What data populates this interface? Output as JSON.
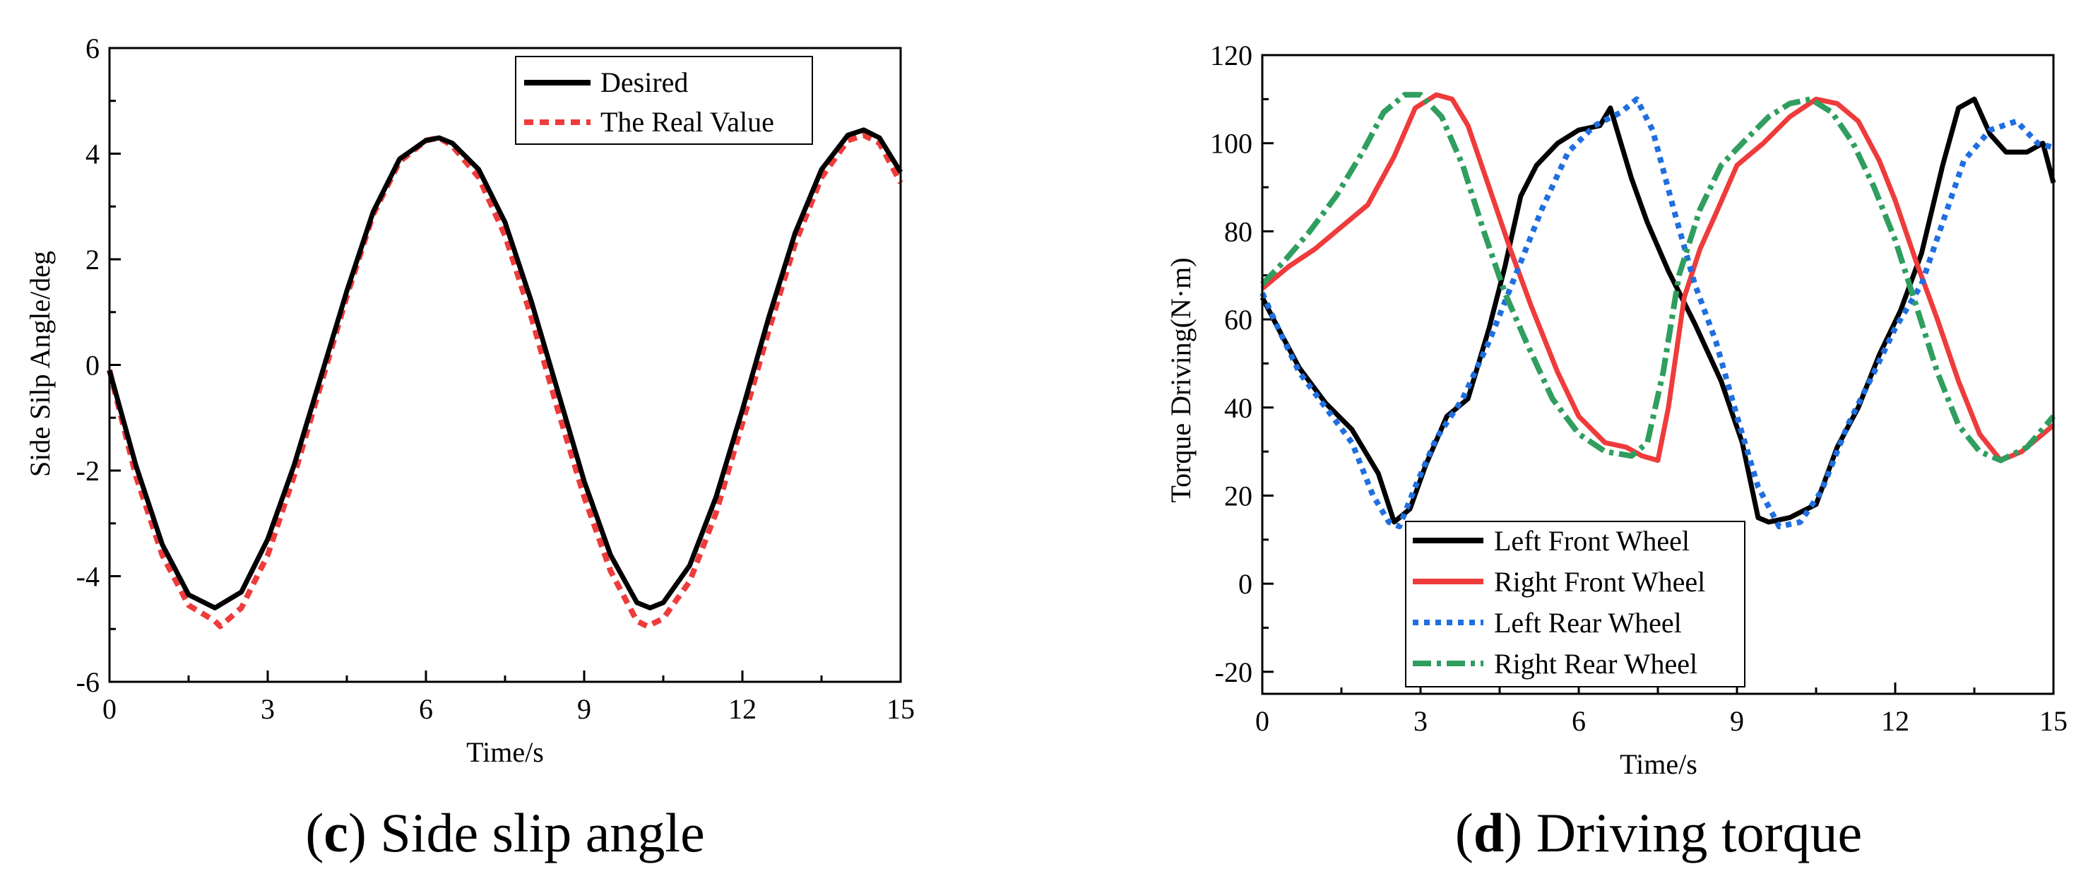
{
  "chart_data": [
    {
      "id": "c",
      "type": "line",
      "caption": {
        "letter": "c",
        "open": "(",
        "close": ")",
        "text": " Side slip angle"
      },
      "xlabel": "Time/s",
      "ylabel": "Side Silp Angle/deg",
      "xlim": [
        0,
        15
      ],
      "ylim": [
        -6,
        6
      ],
      "xticks": [
        0,
        3,
        6,
        9,
        12,
        15
      ],
      "yticks": [
        -6,
        -4,
        -2,
        0,
        2,
        4,
        6
      ],
      "legend_position": "top-right",
      "series": [
        {
          "name": "Desired",
          "color": "#000000",
          "style": "solid",
          "x": [
            0,
            0.5,
            1,
            1.5,
            2,
            2.5,
            3,
            3.5,
            4,
            4.5,
            5,
            5.5,
            6,
            6.25,
            6.5,
            7,
            7.5,
            8,
            8.5,
            9,
            9.5,
            10,
            10.25,
            10.5,
            11,
            11.5,
            12,
            12.5,
            13,
            13.5,
            14,
            14.3,
            14.6,
            15
          ],
          "y": [
            -0.1,
            -1.9,
            -3.4,
            -4.35,
            -4.6,
            -4.3,
            -3.3,
            -1.9,
            -0.25,
            1.4,
            2.9,
            3.9,
            4.25,
            4.3,
            4.2,
            3.7,
            2.7,
            1.2,
            -0.5,
            -2.2,
            -3.6,
            -4.5,
            -4.6,
            -4.5,
            -3.8,
            -2.5,
            -0.85,
            0.9,
            2.5,
            3.7,
            4.35,
            4.45,
            4.3,
            3.65
          ]
        },
        {
          "name": "The Real Value",
          "color": "#ef3b3b",
          "style": "dashed",
          "x": [
            0,
            0.5,
            1,
            1.5,
            2,
            2.1,
            2.5,
            3,
            3.5,
            4,
            4.5,
            5,
            5.5,
            6,
            6.25,
            6.5,
            7,
            7.5,
            8,
            8.5,
            9,
            9.5,
            10,
            10.2,
            10.5,
            11,
            11.5,
            12,
            12.5,
            13,
            13.5,
            14,
            14.3,
            14.6,
            15
          ],
          "y": [
            -0.1,
            -2.1,
            -3.6,
            -4.55,
            -4.85,
            -4.95,
            -4.6,
            -3.6,
            -2.1,
            -0.4,
            1.3,
            2.85,
            3.85,
            4.25,
            4.3,
            4.15,
            3.55,
            2.45,
            0.9,
            -0.85,
            -2.5,
            -3.9,
            -4.85,
            -4.95,
            -4.8,
            -4.1,
            -2.8,
            -1.1,
            0.65,
            2.3,
            3.55,
            4.25,
            4.35,
            4.2,
            3.45
          ]
        }
      ]
    },
    {
      "id": "d",
      "type": "line",
      "caption": {
        "letter": "d",
        "open": "(",
        "close": ")",
        "text": " Driving torque"
      },
      "xlabel": "Time/s",
      "ylabel": "Torque Driving(N·m)",
      "xlim": [
        0,
        15
      ],
      "ylim": [
        -25,
        120
      ],
      "xticks": [
        0,
        3,
        6,
        9,
        12,
        15
      ],
      "yticks": [
        -20,
        0,
        20,
        40,
        60,
        80,
        100,
        120
      ],
      "legend_position": "bottom-left",
      "series": [
        {
          "name": "Left Front Wheel",
          "color": "#000000",
          "style": "solid",
          "x": [
            0,
            0.3,
            0.7,
            1.2,
            1.7,
            2.2,
            2.5,
            2.8,
            3.1,
            3.5,
            3.9,
            4.3,
            4.6,
            4.9,
            5.2,
            5.6,
            6.0,
            6.4,
            6.6,
            6.8,
            7.0,
            7.3,
            7.7,
            8.2,
            8.7,
            9.1,
            9.4,
            9.6,
            10.0,
            10.5,
            10.9,
            11.3,
            11.7,
            12.1,
            12.5,
            12.9,
            13.2,
            13.5,
            13.8,
            14.1,
            14.5,
            14.8,
            15
          ],
          "y": [
            65,
            58,
            49,
            41,
            35,
            25,
            14,
            17,
            27,
            38,
            42,
            58,
            72,
            88,
            95,
            100,
            103,
            104,
            108,
            100,
            92,
            82,
            71,
            59,
            46,
            32,
            15,
            14,
            15,
            18,
            31,
            40,
            52,
            62,
            75,
            95,
            108,
            110,
            102,
            98,
            98,
            100,
            91
          ]
        },
        {
          "name": "Right Front Wheel",
          "color": "#ef3b3b",
          "style": "solid",
          "x": [
            0,
            0.5,
            1.0,
            1.5,
            2.0,
            2.5,
            2.9,
            3.3,
            3.6,
            3.9,
            4.3,
            4.7,
            5.1,
            5.6,
            6.0,
            6.5,
            6.9,
            7.2,
            7.5,
            7.7,
            8.0,
            8.3,
            8.6,
            9.0,
            9.5,
            10.0,
            10.5,
            10.9,
            11.3,
            11.7,
            12.0,
            12.4,
            12.8,
            13.2,
            13.6,
            14.0,
            14.4,
            14.8,
            15
          ],
          "y": [
            67,
            72,
            76,
            81,
            86,
            97,
            108,
            111,
            110,
            104,
            90,
            76,
            63,
            48,
            38,
            32,
            31,
            29,
            28,
            40,
            65,
            76,
            84,
            95,
            100,
            106,
            110,
            109,
            105,
            96,
            87,
            73,
            60,
            46,
            34,
            28,
            30,
            34,
            36
          ]
        },
        {
          "name": "Left Rear Wheel",
          "color": "#1f6fe0",
          "style": "dotted",
          "x": [
            0,
            0.3,
            0.7,
            1.2,
            1.7,
            2.1,
            2.4,
            2.6,
            2.9,
            3.3,
            3.8,
            4.3,
            4.8,
            5.3,
            5.8,
            6.3,
            6.8,
            7.1,
            7.4,
            7.8,
            8.2,
            8.6,
            9.0,
            9.4,
            9.8,
            10.2,
            10.6,
            11.1,
            11.6,
            12.0,
            12.5,
            12.9,
            13.3,
            13.8,
            14.3,
            14.7,
            15
          ],
          "y": [
            66,
            58,
            48,
            40,
            32,
            20,
            14,
            13,
            22,
            33,
            42,
            55,
            70,
            85,
            98,
            104,
            107,
            110,
            103,
            85,
            68,
            55,
            38,
            22,
            13,
            14,
            21,
            36,
            48,
            58,
            68,
            82,
            96,
            103,
            105,
            100,
            99
          ]
        },
        {
          "name": "Right Rear Wheel",
          "color": "#2f9e5f",
          "style": "dashdot",
          "x": [
            0,
            0.4,
            0.9,
            1.4,
            1.9,
            2.3,
            2.7,
            3.0,
            3.4,
            3.8,
            4.2,
            4.6,
            5.0,
            5.5,
            6.0,
            6.5,
            7.0,
            7.3,
            7.6,
            7.9,
            8.3,
            8.7,
            9.1,
            9.6,
            10.0,
            10.4,
            10.8,
            11.2,
            11.6,
            12.0,
            12.4,
            12.8,
            13.2,
            13.6,
            14.0,
            14.5,
            15
          ],
          "y": [
            68,
            73,
            80,
            88,
            98,
            107,
            111,
            111,
            106,
            95,
            80,
            66,
            55,
            42,
            34,
            30,
            29,
            32,
            48,
            70,
            85,
            95,
            100,
            106,
            109,
            110,
            107,
            100,
            90,
            78,
            63,
            48,
            36,
            30,
            28,
            31,
            38
          ]
        }
      ]
    }
  ]
}
